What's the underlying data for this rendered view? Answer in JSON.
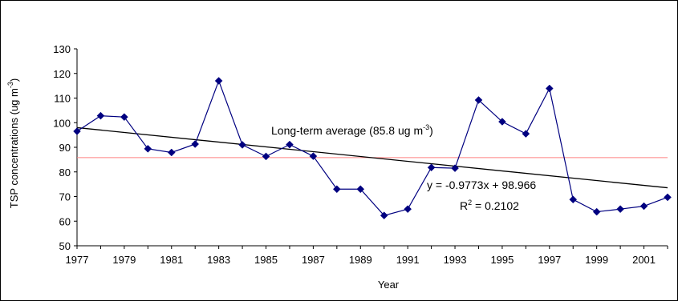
{
  "chart_data": {
    "type": "line",
    "title": "",
    "xlabel": "Year",
    "ylabel_parts": [
      "TSP concentrations (ug m",
      "-3",
      ")"
    ],
    "xlim": [
      1977,
      2002
    ],
    "ylim": [
      50,
      130
    ],
    "y_ticks": [
      50,
      60,
      70,
      80,
      90,
      100,
      110,
      120,
      130
    ],
    "x_ticks": [
      1977,
      1979,
      1981,
      1983,
      1985,
      1987,
      1989,
      1991,
      1993,
      1995,
      1997,
      1999,
      2001
    ],
    "gridlines": false,
    "legend": "none",
    "series": [
      {
        "color": "#000080",
        "marker": "diamond",
        "x": [
          1977,
          1978,
          1979,
          1980,
          1981,
          1982,
          1983,
          1984,
          1985,
          1986,
          1987,
          1988,
          1989,
          1990,
          1991,
          1992,
          1993,
          1994,
          1995,
          1996,
          1997,
          1998,
          1999,
          2000,
          2001,
          2002
        ],
        "y": [
          96.5,
          102.8,
          102.3,
          89.4,
          87.9,
          91.3,
          117.0,
          91.0,
          86.3,
          91.1,
          86.4,
          73.0,
          73.0,
          62.3,
          64.9,
          81.8,
          81.5,
          109.2,
          100.4,
          95.5,
          113.9,
          68.8,
          63.8,
          64.9,
          66.1,
          69.7
        ]
      }
    ],
    "trendline": {
      "color": "#000000",
      "slope": -0.9773,
      "intercept": 98.966,
      "equation_label": "y = -0.9773x + 98.966",
      "r2_parts": [
        "R",
        "2",
        " = 0.2102"
      ]
    },
    "average_line": {
      "color": "#ff8080",
      "value": 85.8,
      "label_parts": [
        "Long-term average (85.8 ug m",
        "-3",
        ")"
      ]
    }
  }
}
